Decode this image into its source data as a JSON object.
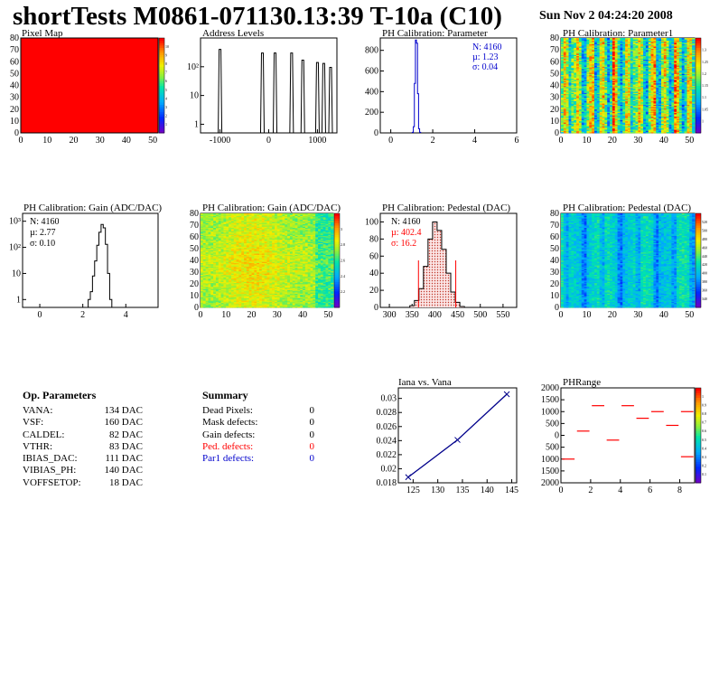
{
  "header": {
    "title": "shortTests M0861-071130.13:39 T-10a (C10)",
    "date": "Sun Nov  2 04:24:20 2008"
  },
  "colors": {
    "red": "#ff0000",
    "blue": "#0000cc",
    "navy": "#00008b",
    "hist_fill": "#f4c2c2"
  },
  "chart_data": [
    {
      "id": "pixel_map",
      "type": "heatmap",
      "title": "Pixel Map",
      "xlim": [
        0,
        52
      ],
      "ylim": [
        0,
        80
      ],
      "xticks": [
        0,
        10,
        20,
        30,
        40,
        50
      ],
      "yticks": [
        0,
        10,
        20,
        30,
        40,
        50,
        60,
        70,
        80
      ],
      "zticks": [
        "1",
        "2",
        "3",
        "4",
        "5",
        "6",
        "7",
        "8",
        "9",
        "10"
      ],
      "fill": "uniform-red"
    },
    {
      "id": "address_levels",
      "type": "bar",
      "title": "Address Levels",
      "xlim": [
        -1400,
        1400
      ],
      "yscale": "log",
      "xticks": [
        -1000,
        0,
        1000
      ],
      "yticks": [
        {
          "v": 1,
          "label": "1"
        },
        {
          "v": 10,
          "label": "10"
        },
        {
          "v": 100,
          "label": "10²"
        }
      ],
      "peaks": [
        {
          "x": -1000,
          "y": 400
        },
        {
          "x": -130,
          "y": 300
        },
        {
          "x": 130,
          "y": 300
        },
        {
          "x": 470,
          "y": 300
        },
        {
          "x": 700,
          "y": 170
        },
        {
          "x": 1000,
          "y": 140
        },
        {
          "x": 1130,
          "y": 130
        },
        {
          "x": 1270,
          "y": 95
        }
      ]
    },
    {
      "id": "ph_param",
      "type": "bar",
      "title": "PH Calibration: Parameter",
      "xlim": [
        -0.5,
        6
      ],
      "ylim": [
        0,
        920
      ],
      "xticks": [
        0,
        2,
        4,
        6
      ],
      "yticks": [
        0,
        200,
        400,
        600,
        800
      ],
      "series": [
        {
          "x": [
            1.05,
            1.1,
            1.15,
            1.2,
            1.25,
            1.3,
            1.35,
            1.4
          ],
          "y": [
            5,
            60,
            480,
            900,
            870,
            380,
            40,
            5
          ]
        }
      ],
      "stats": {
        "n": "N: 4160",
        "mu": "µ: 1.23",
        "sigma": "σ: 0.04"
      }
    },
    {
      "id": "ph_param1",
      "type": "heatmap",
      "title": "PH Calibration: Parameter1",
      "xlim": [
        0,
        52
      ],
      "ylim": [
        0,
        80
      ],
      "xticks": [
        0,
        10,
        20,
        30,
        40,
        50
      ],
      "yticks": [
        0,
        10,
        20,
        30,
        40,
        50,
        60,
        70,
        80
      ],
      "zticks": [
        "1",
        "1.05",
        "1.1",
        "1.15",
        "1.2",
        "1.25",
        "1.3"
      ],
      "palette": "rainbow"
    },
    {
      "id": "gain_hist",
      "type": "bar",
      "title": "PH Calibration: Gain (ADC/DAC)",
      "xlim": [
        -0.8,
        5.5
      ],
      "yscale": "log",
      "xticks": [
        0,
        2,
        4
      ],
      "yticks": [
        {
          "v": 1,
          "label": "1"
        },
        {
          "v": 10,
          "label": "10"
        },
        {
          "v": 100,
          "label": "10²"
        },
        {
          "v": 1000,
          "label": "10³"
        }
      ],
      "series": [
        {
          "x": [
            2.3,
            2.4,
            2.5,
            2.6,
            2.7,
            2.8,
            2.9,
            3.0,
            3.1,
            3.2,
            3.3
          ],
          "y": [
            1,
            2,
            8,
            30,
            120,
            380,
            750,
            560,
            130,
            10,
            1
          ]
        }
      ],
      "stats": {
        "n": "N: 4160",
        "mu": "µ: 2.77",
        "sigma": "σ: 0.10"
      }
    },
    {
      "id": "gain_map",
      "type": "heatmap",
      "title": "PH Calibration: Gain (ADC/DAC)",
      "xlim": [
        0,
        52
      ],
      "ylim": [
        0,
        80
      ],
      "xticks": [
        0,
        10,
        20,
        30,
        40,
        50
      ],
      "yticks": [
        0,
        10,
        20,
        30,
        40,
        50,
        60,
        70,
        80
      ],
      "zticks": [
        "2.2",
        "2.4",
        "2.6",
        "2.8",
        "3"
      ],
      "palette": "rainbow"
    },
    {
      "id": "pedestal_hist",
      "type": "bar",
      "title": "PH Calibration: Pedestal (DAC)",
      "xlim": [
        280,
        580
      ],
      "ylim": [
        0,
        110
      ],
      "xticks": [
        300,
        350,
        400,
        450,
        500,
        550
      ],
      "yticks": [
        0,
        20,
        40,
        60,
        80,
        100
      ],
      "series": [
        {
          "x": [
            350,
            360,
            370,
            380,
            390,
            400,
            410,
            420,
            430,
            440,
            450,
            460
          ],
          "y": [
            2,
            8,
            22,
            48,
            80,
            100,
            90,
            68,
            40,
            18,
            6,
            1
          ]
        }
      ],
      "cut_lines": [
        364,
        446
      ],
      "stats": {
        "n": "N: 4160",
        "mu": "µ: 402.4",
        "sigma": "σ: 16.2"
      }
    },
    {
      "id": "pedestal_map",
      "type": "heatmap",
      "title": "PH Calibration: Pedestal (DAC)",
      "xlim": [
        0,
        52
      ],
      "ylim": [
        0,
        80
      ],
      "xticks": [
        0,
        10,
        20,
        30,
        40,
        50
      ],
      "yticks": [
        0,
        10,
        20,
        30,
        40,
        50,
        60,
        70,
        80
      ],
      "zticks": [
        "340",
        "360",
        "380",
        "400",
        "420",
        "440",
        "460",
        "480",
        "500",
        "520"
      ],
      "palette": "rainbow"
    },
    {
      "id": "iana_vana",
      "type": "line",
      "title": "Iana vs. Vana",
      "xlim": [
        122,
        146
      ],
      "ylim": [
        0.018,
        0.0315
      ],
      "xticks": [
        125,
        130,
        135,
        140,
        145
      ],
      "yticks": [
        0.018,
        0.02,
        0.022,
        0.024,
        0.026,
        0.028,
        0.03
      ],
      "series": [
        {
          "x": [
            124,
            134,
            144
          ],
          "y": [
            0.0188,
            0.0241,
            0.0306
          ]
        }
      ]
    },
    {
      "id": "phrange",
      "type": "scatter",
      "title": "PHRange",
      "xlim": [
        0,
        9
      ],
      "ylim": [
        -2000,
        2000
      ],
      "xticks": [
        0,
        2,
        4,
        6,
        8
      ],
      "yticks": [
        -2000,
        -1500,
        -1000,
        -500,
        0,
        500,
        1000,
        1500,
        2000
      ],
      "yticklabels": [
        "2000",
        "1500",
        "1000",
        "500",
        "0",
        "500",
        "1000",
        "1500",
        "2000"
      ],
      "zticks": [
        "0.1",
        "0.2",
        "0.3",
        "0.4",
        "0.5",
        "0.6",
        "0.7",
        "0.8",
        "0.9",
        "1"
      ],
      "segments": [
        {
          "x": 0.5,
          "y": -1000
        },
        {
          "x": 1.5,
          "y": 180
        },
        {
          "x": 2.5,
          "y": 1250
        },
        {
          "x": 3.5,
          "y": -200
        },
        {
          "x": 4.5,
          "y": 1250
        },
        {
          "x": 5.5,
          "y": 720
        },
        {
          "x": 6.5,
          "y": 1000
        },
        {
          "x": 7.5,
          "y": 420
        },
        {
          "x": 8.5,
          "y": -900
        },
        {
          "x": 8.5,
          "y": 1000
        }
      ]
    }
  ],
  "op_params": {
    "title": "Op. Parameters",
    "rows": [
      {
        "name": "VANA:",
        "value": "134 DAC"
      },
      {
        "name": "VSF:",
        "value": "160 DAC"
      },
      {
        "name": "CALDEL:",
        "value": "82 DAC"
      },
      {
        "name": "VTHR:",
        "value": "83 DAC"
      },
      {
        "name": "IBIAS_DAC:",
        "value": "111 DAC"
      },
      {
        "name": "VIBIAS_PH:",
        "value": "140 DAC"
      },
      {
        "name": "VOFFSETOP:",
        "value": "18 DAC"
      }
    ]
  },
  "summary": {
    "title": "Summary",
    "rows": [
      {
        "name": "Dead Pixels:",
        "value": "0",
        "color": "#000000"
      },
      {
        "name": "Mask defects:",
        "value": "0",
        "color": "#000000"
      },
      {
        "name": "Gain defects:",
        "value": "0",
        "color": "#000000"
      },
      {
        "name": "Ped. defects:",
        "value": "0",
        "color": "#ff0000"
      },
      {
        "name": "Par1 defects:",
        "value": "0",
        "color": "#0000cc"
      }
    ]
  }
}
